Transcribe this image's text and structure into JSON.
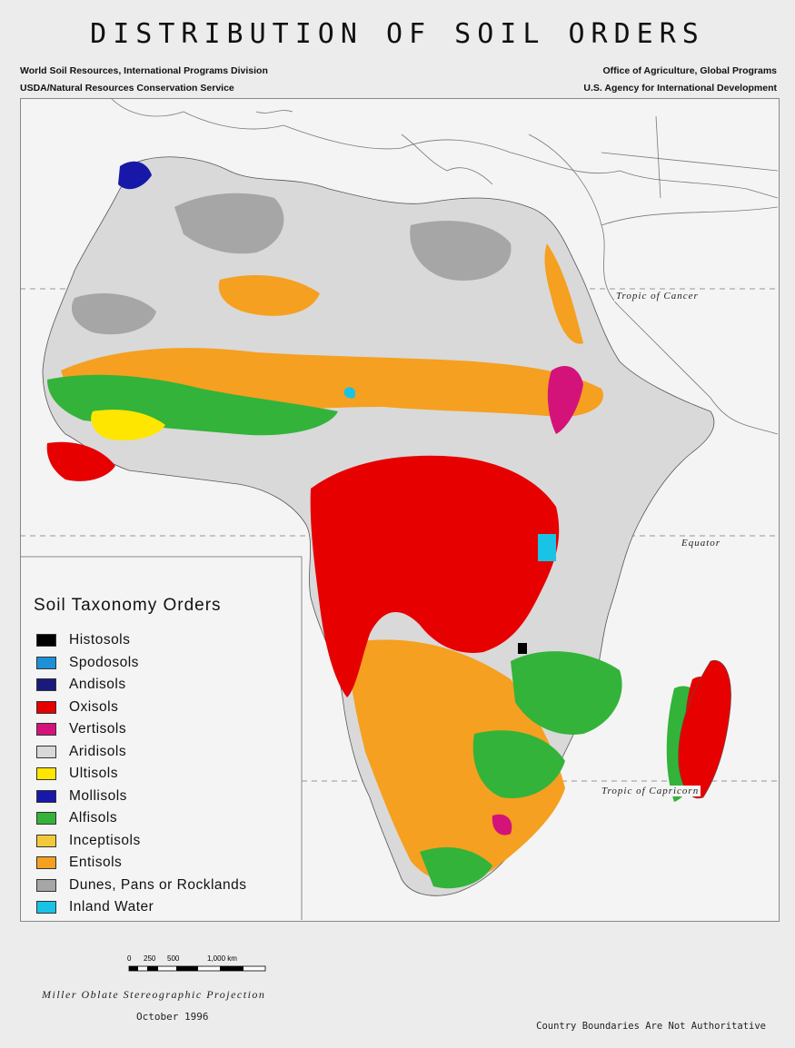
{
  "title": "DISTRIBUTION OF SOIL ORDERS",
  "credits_left": [
    "World Soil Resources, International Programs Division",
    "USDA/Natural Resources Conservation Service"
  ],
  "credits_right": [
    "Office of Agriculture, Global Programs",
    "U.S. Agency for International Development"
  ],
  "map_labels": {
    "cancer": "Tropic of Cancer",
    "equator": "Equator",
    "capricorn": "Tropic of Capricorn"
  },
  "legend": {
    "title": "Soil Taxonomy Orders",
    "items": [
      {
        "label": "Histosols",
        "color": "#000000"
      },
      {
        "label": "Spodosols",
        "color": "#1e90d8"
      },
      {
        "label": "Andisols",
        "color": "#1a1a7a"
      },
      {
        "label": "Oxisols",
        "color": "#e60000"
      },
      {
        "label": "Vertisols",
        "color": "#d4137a"
      },
      {
        "label": "Aridisols",
        "color": "#d9d9d9"
      },
      {
        "label": "Ultisols",
        "color": "#ffe600"
      },
      {
        "label": "Mollisols",
        "color": "#1818a8"
      },
      {
        "label": "Alfisols",
        "color": "#33b33a"
      },
      {
        "label": "Inceptisols",
        "color": "#f2c93a"
      },
      {
        "label": "Entisols",
        "color": "#f5a020"
      },
      {
        "label": "Dunes, Pans or Rocklands",
        "color": "#a6a6a6"
      },
      {
        "label": "Inland Water",
        "color": "#19c3e6"
      }
    ]
  },
  "scale": {
    "ticks": [
      "0",
      "250",
      "500",
      "1,000 km"
    ]
  },
  "footer": {
    "projection": "Miller Oblate Stereographic Projection",
    "date": "October 1996",
    "note": "Country Boundaries Are Not Authoritative"
  }
}
